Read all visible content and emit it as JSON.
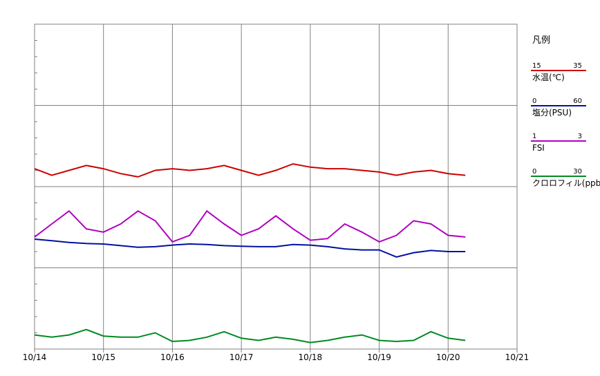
{
  "chart_data": {
    "type": "line",
    "legend_title": "凡例",
    "xlim": [
      0,
      7
    ],
    "xticks": [
      {
        "value": 0,
        "label": "10/14"
      },
      {
        "value": 1,
        "label": "10/15"
      },
      {
        "value": 2,
        "label": "10/16"
      },
      {
        "value": 3,
        "label": "10/17"
      },
      {
        "value": 4,
        "label": "10/18"
      },
      {
        "value": 5,
        "label": "10/19"
      },
      {
        "value": 6,
        "label": "10/20"
      },
      {
        "value": 7,
        "label": "10/21"
      }
    ],
    "grid": true,
    "x": [
      0,
      0.25,
      0.5,
      0.75,
      1,
      1.25,
      1.5,
      1.75,
      2,
      2.25,
      2.5,
      2.75,
      3,
      3.25,
      3.5,
      3.75,
      4,
      4.25,
      4.5,
      4.75,
      5,
      5.25,
      5.5,
      5.75,
      6,
      6.25
    ],
    "series": [
      {
        "name": "水温(℃)",
        "color": "#cc0000",
        "ylim": [
          15,
          35
        ],
        "values": [
          26.1,
          25.7,
          26.0,
          26.3,
          26.1,
          25.8,
          25.6,
          26.0,
          26.1,
          26.0,
          26.1,
          26.3,
          26.0,
          25.7,
          26.0,
          26.4,
          26.2,
          26.1,
          26.1,
          26.0,
          25.9,
          25.7,
          25.9,
          26.0,
          25.8,
          25.7
        ]
      },
      {
        "name": "塩分(PSU)",
        "color": "#0010a0",
        "ylim": [
          0,
          60
        ],
        "values": [
          20.3,
          20.0,
          19.7,
          19.5,
          19.4,
          19.1,
          18.8,
          18.9,
          19.2,
          19.4,
          19.3,
          19.1,
          19.0,
          18.9,
          18.9,
          19.3,
          19.2,
          18.9,
          18.5,
          18.3,
          18.3,
          17.0,
          17.8,
          18.2,
          18.0,
          18.0
        ]
      },
      {
        "name": "FSI",
        "color": "#b000c0",
        "ylim": [
          1,
          3
        ],
        "values": [
          1.69,
          1.77,
          1.85,
          1.74,
          1.72,
          1.77,
          1.85,
          1.79,
          1.66,
          1.7,
          1.85,
          1.77,
          1.7,
          1.74,
          1.82,
          1.74,
          1.67,
          1.68,
          1.77,
          1.72,
          1.66,
          1.7,
          1.79,
          1.77,
          1.7,
          1.69
        ]
      },
      {
        "name": "クロロフィル(ppb)",
        "color": "#008a20",
        "ylim": [
          0,
          30
        ],
        "values": [
          1.3,
          1.1,
          1.3,
          1.8,
          1.2,
          1.1,
          1.1,
          1.5,
          0.7,
          0.8,
          1.1,
          1.6,
          1.0,
          0.8,
          1.1,
          0.9,
          0.6,
          0.8,
          1.1,
          1.3,
          0.8,
          0.7,
          0.8,
          1.6,
          1.0,
          0.8
        ]
      }
    ]
  }
}
